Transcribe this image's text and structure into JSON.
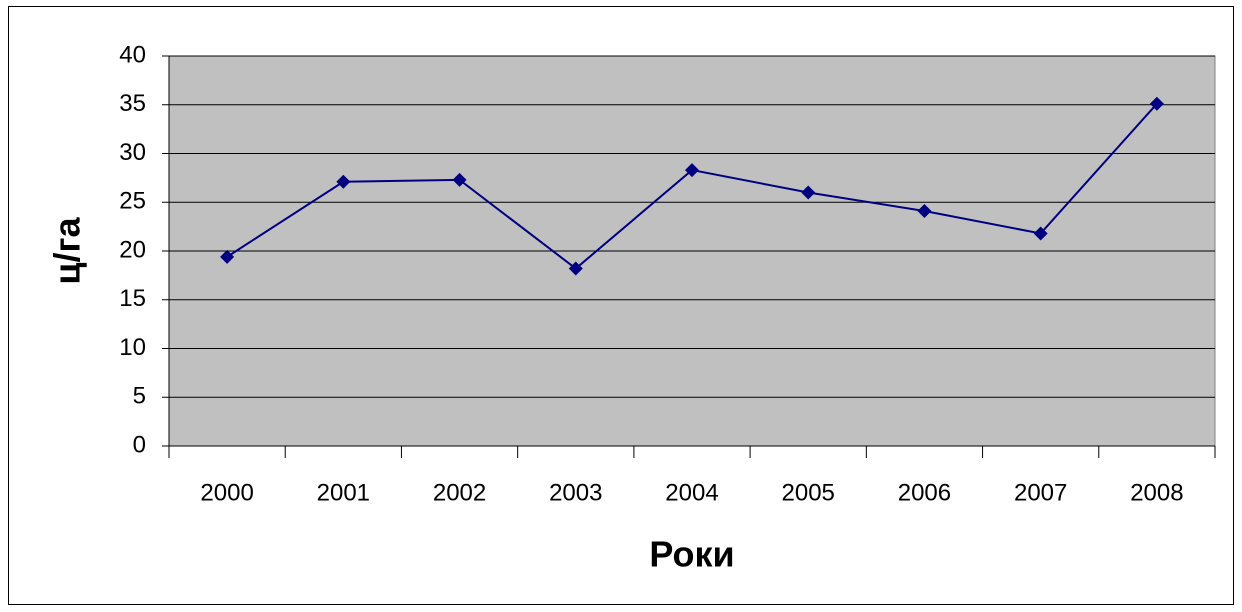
{
  "chart_data": {
    "type": "line",
    "x_label": "Роки",
    "y_label": "ц/га",
    "categories": [
      "2000",
      "2001",
      "2002",
      "2003",
      "2004",
      "2005",
      "2006",
      "2007",
      "2008"
    ],
    "series": [
      {
        "color": "#000080",
        "values": [
          19.4,
          27.1,
          27.3,
          18.2,
          28.3,
          26.0,
          24.1,
          21.8,
          35.1
        ]
      }
    ],
    "ylim": [
      0,
      40
    ],
    "yticks": [
      0,
      5,
      10,
      15,
      20,
      25,
      30,
      35,
      40
    ],
    "grid": true,
    "plot_background": "#c0c0c0"
  }
}
